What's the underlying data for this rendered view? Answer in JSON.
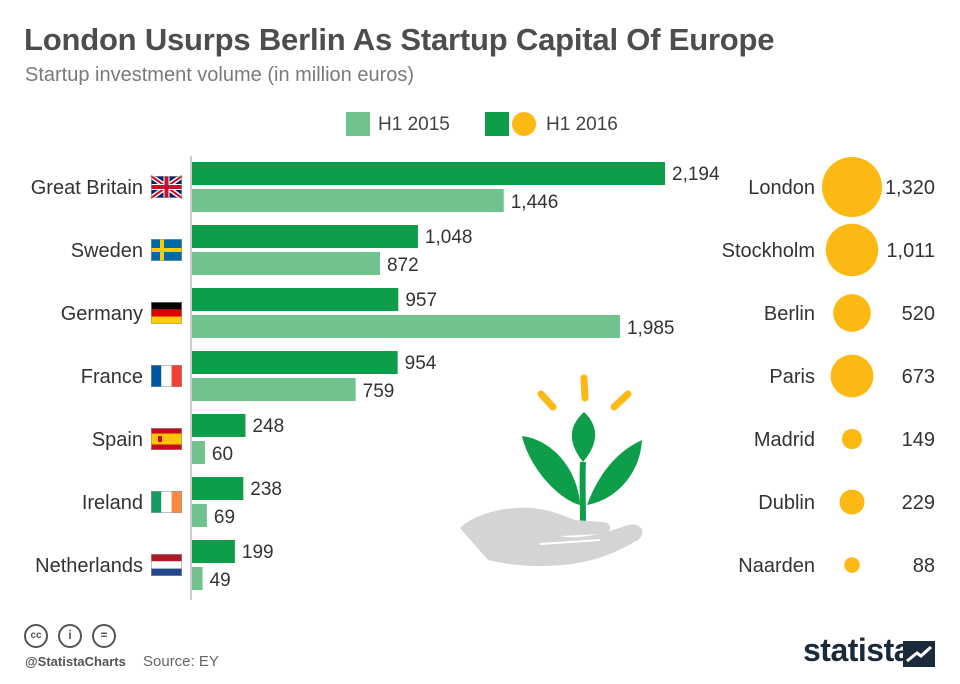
{
  "title": "London Usurps Berlin As Startup Capital Of Europe",
  "subtitle": "Startup investment volume (in million euros)",
  "colors": {
    "h1_2015": "#70c28f",
    "h1_2016": "#0e9e4a",
    "city_bubble": "#fdb913",
    "text": "#333333"
  },
  "chart_data": {
    "type": "bar",
    "orientation": "horizontal",
    "categories": [
      "Great Britain",
      "Sweden",
      "Germany",
      "France",
      "Spain",
      "Ireland",
      "Netherlands"
    ],
    "flags": [
      "uk-flag-icon",
      "sweden-flag-icon",
      "germany-flag-icon",
      "france-flag-icon",
      "spain-flag-icon",
      "ireland-flag-icon",
      "netherlands-flag-icon"
    ],
    "series": [
      {
        "name": "H1 2016",
        "values": [
          2194,
          1048,
          957,
          954,
          248,
          238,
          199
        ],
        "labels": [
          "2,194",
          "1,048",
          "957",
          "954",
          "248",
          "238",
          "199"
        ]
      },
      {
        "name": "H1 2015",
        "values": [
          1446,
          872,
          1985,
          759,
          60,
          69,
          49
        ],
        "labels": [
          "1,446",
          "872",
          "1,985",
          "759",
          "60",
          "69",
          "49"
        ]
      }
    ],
    "legend": {
      "position": "top",
      "entries": [
        "H1 2015",
        "H1 2016"
      ]
    },
    "cities": {
      "series_name": "H1 2016",
      "names": [
        "London",
        "Stockholm",
        "Berlin",
        "Paris",
        "Madrid",
        "Dublin",
        "Naarden"
      ],
      "values": [
        1320,
        1011,
        520,
        673,
        149,
        229,
        88
      ],
      "labels": [
        "1,320",
        "1,011",
        "520",
        "673",
        "149",
        "229",
        "88"
      ]
    },
    "grid": false
  },
  "illustration": "hand-with-sprout-icon",
  "footer": {
    "handle": "@StatistaCharts",
    "source": "Source: EY",
    "license_icons": [
      "cc-icon",
      "attribution-icon",
      "no-derivatives-icon"
    ],
    "cc_glyphs": [
      "cc",
      "i",
      "="
    ],
    "brand": "statista"
  }
}
